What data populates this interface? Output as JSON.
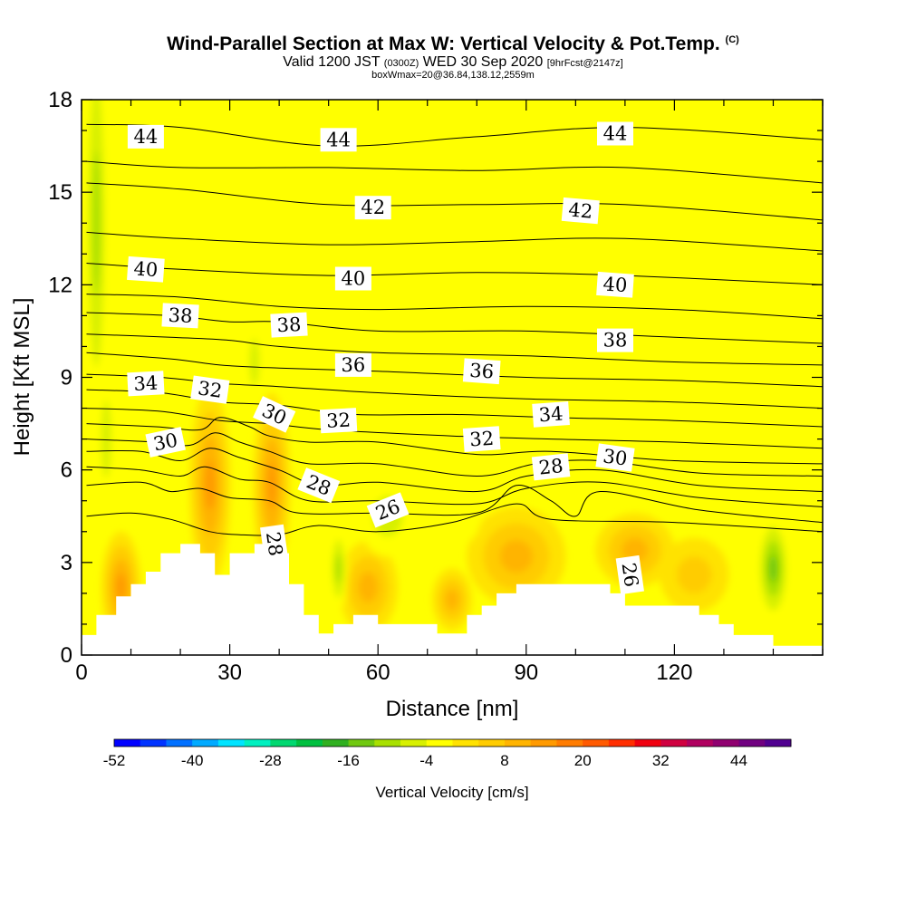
{
  "title": {
    "main": "Wind-Parallel Section at Max W: Vertical Velocity & Pot.Temp.",
    "copyright": "(C)",
    "valid_prefix": "Valid 1200 JST",
    "valid_utc": "(0300Z)",
    "valid_date": "WED 30 Sep 2020",
    "forecast": "[9hrFcst@2147z]",
    "box": "boxWmax=20@36.84,138.12,2559m"
  },
  "colors": {
    "background": "#ffff00",
    "terrain": "#ffffff",
    "contour": "#000000"
  },
  "chart_data": {
    "type": "heatmap",
    "xlabel": "Distance [nm]",
    "ylabel": "Height [Kft MSL]",
    "xlim": [
      0,
      150
    ],
    "ylim": [
      0,
      18
    ],
    "xticks": [
      0,
      30,
      60,
      90,
      120
    ],
    "yticks": [
      0,
      3,
      6,
      9,
      12,
      15,
      18
    ],
    "colorbar": {
      "label": "Vertical Velocity [cm/s]",
      "tick_values": [
        -52,
        -40,
        -28,
        -16,
        -4,
        8,
        20,
        32,
        44
      ],
      "min": -52,
      "max": 50,
      "step": 4,
      "colors": [
        "#0000ff",
        "#0033ff",
        "#0070ff",
        "#00aaff",
        "#00e4ff",
        "#00f0c0",
        "#00d870",
        "#00c040",
        "#30b020",
        "#70c810",
        "#a8e000",
        "#d8f000",
        "#ffff00",
        "#ffe200",
        "#ffcc00",
        "#ffb400",
        "#ff9a00",
        "#ff7c00",
        "#ff5a00",
        "#ff2e00",
        "#f00010",
        "#d00040",
        "#b00060",
        "#900070",
        "#700080",
        "#500090"
      ]
    },
    "terrain_profile": [
      [
        0,
        0.65
      ],
      [
        3,
        0.65
      ],
      [
        3,
        1.3
      ],
      [
        7,
        1.3
      ],
      [
        7,
        1.9
      ],
      [
        10,
        1.9
      ],
      [
        10,
        2.3
      ],
      [
        13,
        2.3
      ],
      [
        13,
        2.7
      ],
      [
        16,
        2.7
      ],
      [
        16,
        3.3
      ],
      [
        20,
        3.3
      ],
      [
        20,
        3.6
      ],
      [
        24,
        3.6
      ],
      [
        24,
        3.3
      ],
      [
        27,
        3.3
      ],
      [
        27,
        2.6
      ],
      [
        30,
        2.6
      ],
      [
        30,
        3.3
      ],
      [
        35,
        3.3
      ],
      [
        35,
        3.6
      ],
      [
        39,
        3.6
      ],
      [
        39,
        3.3
      ],
      [
        42,
        3.3
      ],
      [
        42,
        2.3
      ],
      [
        45,
        2.3
      ],
      [
        45,
        1.3
      ],
      [
        48,
        1.3
      ],
      [
        48,
        0.7
      ],
      [
        51,
        0.7
      ],
      [
        51,
        1.0
      ],
      [
        55,
        1.0
      ],
      [
        55,
        1.3
      ],
      [
        60,
        1.3
      ],
      [
        60,
        1.0
      ],
      [
        72,
        1.0
      ],
      [
        72,
        0.7
      ],
      [
        78,
        0.7
      ],
      [
        78,
        1.3
      ],
      [
        81,
        1.3
      ],
      [
        81,
        1.6
      ],
      [
        84,
        1.6
      ],
      [
        84,
        2.0
      ],
      [
        88,
        2.0
      ],
      [
        88,
        2.3
      ],
      [
        107,
        2.3
      ],
      [
        107,
        2.0
      ],
      [
        110,
        2.0
      ],
      [
        110,
        1.6
      ],
      [
        125,
        1.6
      ],
      [
        125,
        1.3
      ],
      [
        129,
        1.3
      ],
      [
        129,
        1.0
      ],
      [
        132,
        1.0
      ],
      [
        132,
        0.65
      ],
      [
        140,
        0.65
      ],
      [
        140,
        0.3
      ],
      [
        150,
        0.3
      ]
    ],
    "velocity_features": [
      {
        "x": 26,
        "y": 5.6,
        "rx": 2.6,
        "ry": 2.0,
        "w": 52
      },
      {
        "x": 38.5,
        "y": 5.5,
        "rx": 2.2,
        "ry": 2.0,
        "w": 52
      },
      {
        "x": 26,
        "y": 5.5,
        "rx": 4.2,
        "ry": 3.2,
        "w": 16
      },
      {
        "x": 38.5,
        "y": 5.5,
        "rx": 3.8,
        "ry": 3.0,
        "w": 16
      },
      {
        "x": 8,
        "y": 2.2,
        "rx": 4.0,
        "ry": 1.8,
        "w": 16
      },
      {
        "x": 58,
        "y": 2.2,
        "rx": 6.0,
        "ry": 1.5,
        "w": 10
      },
      {
        "x": 88,
        "y": 3.2,
        "rx": 10.0,
        "ry": 1.6,
        "w": 12
      },
      {
        "x": 112,
        "y": 3.4,
        "rx": 8.0,
        "ry": 1.2,
        "w": 10
      },
      {
        "x": 75,
        "y": 1.8,
        "rx": 4.0,
        "ry": 1.0,
        "w": 10
      },
      {
        "x": 124,
        "y": 2.6,
        "rx": 7.0,
        "ry": 1.2,
        "w": 8
      },
      {
        "x": 3,
        "y": 14.0,
        "rx": 2.4,
        "ry": 7.0,
        "w": -10
      },
      {
        "x": 5,
        "y": 7.0,
        "rx": 2.0,
        "ry": 2.5,
        "w": -6
      },
      {
        "x": 52,
        "y": 2.8,
        "rx": 1.8,
        "ry": 1.4,
        "w": -12
      },
      {
        "x": 62,
        "y": 4.5,
        "rx": 6.0,
        "ry": 1.3,
        "w": -6
      },
      {
        "x": 77,
        "y": 4.6,
        "rx": 4.0,
        "ry": 1.0,
        "w": -5
      },
      {
        "x": 140,
        "y": 2.8,
        "rx": 3.5,
        "ry": 1.8,
        "w": -14
      },
      {
        "x": 35,
        "y": 9.5,
        "rx": 2.0,
        "ry": 1.5,
        "w": -7
      },
      {
        "x": 28,
        "y": 10.0,
        "rx": 1.6,
        "ry": 1.2,
        "w": -5
      },
      {
        "x": 14,
        "y": 9.0,
        "rx": 1.5,
        "ry": 1.2,
        "w": -4
      }
    ],
    "theta_contours": [
      {
        "value": 44,
        "points": [
          [
            1,
            17.2
          ],
          [
            20,
            17.1
          ],
          [
            50,
            16.5
          ],
          [
            80,
            16.8
          ],
          [
            110,
            17.1
          ],
          [
            150,
            16.7
          ]
        ]
      },
      {
        "value": 43,
        "points": [
          [
            1,
            16.0
          ],
          [
            20,
            15.8
          ],
          [
            50,
            15.8
          ],
          [
            80,
            15.7
          ],
          [
            110,
            15.8
          ],
          [
            150,
            15.3
          ]
        ]
      },
      {
        "value": 42,
        "points": [
          [
            1,
            15.3
          ],
          [
            20,
            15.1
          ],
          [
            50,
            14.6
          ],
          [
            80,
            14.6
          ],
          [
            110,
            14.6
          ],
          [
            150,
            14.1
          ]
        ]
      },
      {
        "value": 41,
        "points": [
          [
            1,
            13.7
          ],
          [
            20,
            13.5
          ],
          [
            50,
            13.3
          ],
          [
            80,
            13.4
          ],
          [
            110,
            13.5
          ],
          [
            150,
            13.1
          ]
        ]
      },
      {
        "value": 40,
        "points": [
          [
            1,
            12.7
          ],
          [
            20,
            12.5
          ],
          [
            50,
            12.3
          ],
          [
            80,
            12.4
          ],
          [
            110,
            12.3
          ],
          [
            150,
            12.0
          ]
        ]
      },
      {
        "value": 39,
        "points": [
          [
            1,
            11.7
          ],
          [
            20,
            11.6
          ],
          [
            40,
            11.3
          ],
          [
            60,
            11.2
          ],
          [
            90,
            11.3
          ],
          [
            120,
            11.2
          ],
          [
            150,
            10.9
          ]
        ]
      },
      {
        "value": 38,
        "points": [
          [
            1,
            11.1
          ],
          [
            18,
            11.0
          ],
          [
            30,
            10.8
          ],
          [
            40,
            10.8
          ],
          [
            60,
            10.5
          ],
          [
            90,
            10.5
          ],
          [
            120,
            10.3
          ],
          [
            150,
            10.1
          ]
        ]
      },
      {
        "value": 37,
        "points": [
          [
            1,
            10.4
          ],
          [
            18,
            10.3
          ],
          [
            30,
            10.2
          ],
          [
            40,
            10.0
          ],
          [
            60,
            9.8
          ],
          [
            90,
            9.7
          ],
          [
            120,
            9.5
          ],
          [
            150,
            9.4
          ]
        ]
      },
      {
        "value": 36,
        "points": [
          [
            1,
            9.8
          ],
          [
            18,
            9.6
          ],
          [
            28,
            9.4
          ],
          [
            40,
            9.3
          ],
          [
            60,
            9.2
          ],
          [
            90,
            9.0
          ],
          [
            120,
            8.9
          ],
          [
            150,
            8.7
          ]
        ]
      },
      {
        "value": 35,
        "points": [
          [
            1,
            9.1
          ],
          [
            16,
            9.0
          ],
          [
            28,
            8.8
          ],
          [
            40,
            8.7
          ],
          [
            60,
            8.5
          ],
          [
            90,
            8.3
          ],
          [
            120,
            8.2
          ],
          [
            150,
            8.0
          ]
        ]
      },
      {
        "value": 34,
        "points": [
          [
            1,
            8.6
          ],
          [
            16,
            8.5
          ],
          [
            28,
            8.2
          ],
          [
            40,
            8.1
          ],
          [
            55,
            7.8
          ],
          [
            75,
            7.8
          ],
          [
            95,
            7.7
          ],
          [
            120,
            7.6
          ],
          [
            150,
            7.4
          ]
        ]
      },
      {
        "value": 33,
        "points": [
          [
            1,
            8.0
          ],
          [
            16,
            7.9
          ],
          [
            28,
            7.6
          ],
          [
            38,
            7.5
          ],
          [
            50,
            7.3
          ],
          [
            75,
            7.1
          ],
          [
            95,
            7.0
          ],
          [
            120,
            6.9
          ],
          [
            150,
            6.7
          ]
        ]
      },
      {
        "value": 32,
        "points": [
          [
            1,
            7.5
          ],
          [
            15,
            7.4
          ],
          [
            24,
            7.3
          ],
          [
            28,
            7.7
          ],
          [
            34,
            7.4
          ],
          [
            38,
            7.1
          ],
          [
            46,
            6.9
          ],
          [
            60,
            6.9
          ],
          [
            80,
            6.5
          ],
          [
            95,
            6.6
          ],
          [
            120,
            6.3
          ],
          [
            150,
            6.2
          ]
        ]
      },
      {
        "value": 31,
        "points": [
          [
            1,
            7.0
          ],
          [
            15,
            6.9
          ],
          [
            22,
            6.8
          ],
          [
            27,
            7.2
          ],
          [
            32,
            6.9
          ],
          [
            38,
            6.6
          ],
          [
            46,
            6.2
          ],
          [
            60,
            6.2
          ],
          [
            80,
            5.8
          ],
          [
            92,
            6.2
          ],
          [
            105,
            6.3
          ],
          [
            125,
            5.9
          ],
          [
            150,
            5.8
          ]
        ]
      },
      {
        "value": 30,
        "points": [
          [
            1,
            6.6
          ],
          [
            12,
            6.6
          ],
          [
            20,
            6.3
          ],
          [
            26,
            6.7
          ],
          [
            32,
            6.4
          ],
          [
            40,
            6.0
          ],
          [
            48,
            5.5
          ],
          [
            60,
            5.6
          ],
          [
            80,
            5.3
          ],
          [
            90,
            5.8
          ],
          [
            105,
            6.0
          ],
          [
            125,
            5.5
          ],
          [
            150,
            5.3
          ]
        ]
      },
      {
        "value": 29,
        "points": [
          [
            1,
            6.1
          ],
          [
            12,
            6.0
          ],
          [
            20,
            5.8
          ],
          [
            25,
            6.1
          ],
          [
            32,
            5.7
          ],
          [
            38,
            5.6
          ],
          [
            46,
            5.0
          ],
          [
            60,
            5.0
          ],
          [
            80,
            4.9
          ],
          [
            90,
            5.4
          ],
          [
            105,
            5.6
          ],
          [
            125,
            5.1
          ],
          [
            150,
            4.8
          ]
        ]
      },
      {
        "value": 28,
        "points": [
          [
            1,
            5.5
          ],
          [
            12,
            5.6
          ],
          [
            18,
            5.3
          ],
          [
            24,
            5.4
          ],
          [
            30,
            5.1
          ],
          [
            38,
            5.0
          ],
          [
            44,
            4.6
          ],
          [
            60,
            4.6
          ],
          [
            80,
            4.6
          ],
          [
            88,
            5.5
          ],
          [
            95,
            5.0
          ],
          [
            100,
            4.5
          ],
          [
            105,
            5.3
          ],
          [
            125,
            4.7
          ],
          [
            150,
            4.3
          ]
        ]
      },
      {
        "value": 27,
        "points": [
          [
            1,
            4.5
          ],
          [
            10,
            4.6
          ],
          [
            18,
            4.4
          ],
          [
            26,
            4.0
          ],
          [
            32,
            3.9
          ],
          [
            40,
            3.9
          ],
          [
            48,
            4.2
          ],
          [
            60,
            4.0
          ],
          [
            75,
            4.3
          ],
          [
            88,
            4.9
          ],
          [
            95,
            4.4
          ],
          [
            120,
            4.3
          ],
          [
            150,
            4.0
          ]
        ]
      }
    ],
    "contour_labels": [
      {
        "text": "44",
        "x": 13,
        "y": 16.8,
        "rot": 0
      },
      {
        "text": "44",
        "x": 52,
        "y": 16.7,
        "rot": 0
      },
      {
        "text": "44",
        "x": 108,
        "y": 16.9,
        "rot": 0
      },
      {
        "text": "42",
        "x": 59,
        "y": 14.5,
        "rot": 0
      },
      {
        "text": "42",
        "x": 101,
        "y": 14.4,
        "rot": 5
      },
      {
        "text": "40",
        "x": 13,
        "y": 12.5,
        "rot": 4
      },
      {
        "text": "40",
        "x": 55,
        "y": 12.2,
        "rot": 0
      },
      {
        "text": "40",
        "x": 108,
        "y": 12.0,
        "rot": 4
      },
      {
        "text": "38",
        "x": 20,
        "y": 11.0,
        "rot": 3
      },
      {
        "text": "38",
        "x": 42,
        "y": 10.7,
        "rot": -3
      },
      {
        "text": "38",
        "x": 108,
        "y": 10.2,
        "rot": 0
      },
      {
        "text": "36",
        "x": 55,
        "y": 9.4,
        "rot": 0
      },
      {
        "text": "36",
        "x": 81,
        "y": 9.2,
        "rot": 4
      },
      {
        "text": "34",
        "x": 13,
        "y": 8.8,
        "rot": -3
      },
      {
        "text": "34",
        "x": 95,
        "y": 7.8,
        "rot": -4
      },
      {
        "text": "32",
        "x": 26,
        "y": 8.6,
        "rot": 8
      },
      {
        "text": "32",
        "x": 52,
        "y": 7.6,
        "rot": -3
      },
      {
        "text": "32",
        "x": 81,
        "y": 7.0,
        "rot": -4
      },
      {
        "text": "30",
        "x": 39,
        "y": 7.8,
        "rot": 25
      },
      {
        "text": "30",
        "x": 17,
        "y": 6.9,
        "rot": -12
      },
      {
        "text": "30",
        "x": 108,
        "y": 6.4,
        "rot": 8
      },
      {
        "text": "28",
        "x": 48,
        "y": 5.5,
        "rot": 22
      },
      {
        "text": "28",
        "x": 95,
        "y": 6.1,
        "rot": -6
      },
      {
        "text": "28",
        "x": 39,
        "y": 3.6,
        "rot": 82
      },
      {
        "text": "26",
        "x": 62,
        "y": 4.7,
        "rot": -22
      },
      {
        "text": "26",
        "x": 111,
        "y": 2.6,
        "rot": 82
      }
    ]
  }
}
